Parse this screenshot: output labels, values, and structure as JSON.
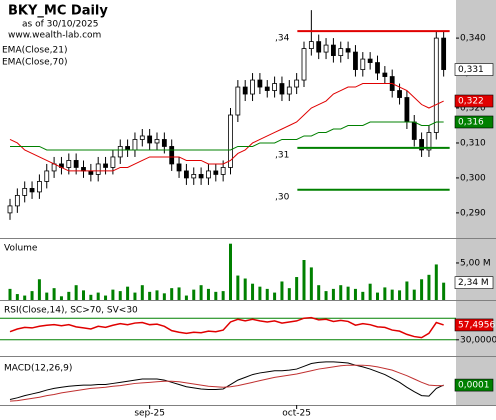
{
  "chart_data": [
    {
      "type": "candlestick",
      "title": "BKY_MC Daily",
      "subtitle": "as of 30/10/2025",
      "source": "www.wealth-lab.com",
      "open": [
        0.29,
        0.292,
        0.295,
        0.297,
        0.296,
        0.299,
        0.302,
        0.304,
        0.303,
        0.305,
        0.303,
        0.302,
        0.301,
        0.304,
        0.303,
        0.306,
        0.309,
        0.308,
        0.311,
        0.312,
        0.31,
        0.311,
        0.309,
        0.304,
        0.302,
        0.3,
        0.301,
        0.3,
        0.302,
        0.301,
        0.303,
        0.318,
        0.326,
        0.324,
        0.328,
        0.326,
        0.325,
        0.327,
        0.324,
        0.326,
        0.328,
        0.337,
        0.339,
        0.336,
        0.338,
        0.335,
        0.337,
        0.336,
        0.331,
        0.334,
        0.333,
        0.33,
        0.329,
        0.325,
        0.323,
        0.316,
        0.311,
        0.308,
        0.313,
        0.34
      ],
      "high": [
        0.294,
        0.297,
        0.299,
        0.299,
        0.301,
        0.304,
        0.306,
        0.306,
        0.307,
        0.307,
        0.305,
        0.304,
        0.306,
        0.306,
        0.308,
        0.311,
        0.311,
        0.313,
        0.314,
        0.314,
        0.313,
        0.313,
        0.311,
        0.306,
        0.304,
        0.303,
        0.303,
        0.304,
        0.304,
        0.305,
        0.32,
        0.328,
        0.328,
        0.33,
        0.33,
        0.328,
        0.329,
        0.329,
        0.328,
        0.33,
        0.339,
        0.348,
        0.341,
        0.34,
        0.34,
        0.339,
        0.339,
        0.338,
        0.336,
        0.336,
        0.335,
        0.332,
        0.331,
        0.327,
        0.325,
        0.318,
        0.313,
        0.315,
        0.342,
        0.342
      ],
      "low": [
        0.288,
        0.29,
        0.293,
        0.294,
        0.294,
        0.297,
        0.3,
        0.301,
        0.301,
        0.301,
        0.3,
        0.299,
        0.299,
        0.301,
        0.301,
        0.304,
        0.306,
        0.306,
        0.309,
        0.308,
        0.308,
        0.307,
        0.302,
        0.3,
        0.298,
        0.298,
        0.298,
        0.298,
        0.299,
        0.299,
        0.301,
        0.316,
        0.322,
        0.322,
        0.324,
        0.323,
        0.323,
        0.322,
        0.322,
        0.324,
        0.326,
        0.335,
        0.334,
        0.334,
        0.333,
        0.333,
        0.334,
        0.329,
        0.329,
        0.331,
        0.328,
        0.327,
        0.323,
        0.321,
        0.314,
        0.309,
        0.306,
        0.306,
        0.311,
        0.329
      ],
      "close": [
        0.292,
        0.295,
        0.297,
        0.296,
        0.299,
        0.302,
        0.304,
        0.303,
        0.305,
        0.303,
        0.302,
        0.301,
        0.304,
        0.303,
        0.306,
        0.309,
        0.308,
        0.311,
        0.312,
        0.31,
        0.311,
        0.309,
        0.304,
        0.302,
        0.3,
        0.301,
        0.3,
        0.302,
        0.301,
        0.303,
        0.318,
        0.326,
        0.324,
        0.328,
        0.326,
        0.325,
        0.327,
        0.324,
        0.326,
        0.328,
        0.337,
        0.339,
        0.336,
        0.338,
        0.335,
        0.337,
        0.336,
        0.331,
        0.334,
        0.333,
        0.33,
        0.329,
        0.325,
        0.323,
        0.316,
        0.311,
        0.308,
        0.313,
        0.34,
        0.331
      ],
      "close_label": "0,331",
      "series": [
        {
          "name": "EMA(Close,21)",
          "color": "#e00000",
          "last_label": "0,322",
          "values": [
            0.311,
            0.31,
            0.308,
            0.307,
            0.306,
            0.305,
            0.304,
            0.303,
            0.302,
            0.302,
            0.302,
            0.302,
            0.302,
            0.302,
            0.302,
            0.303,
            0.303,
            0.304,
            0.305,
            0.306,
            0.306,
            0.306,
            0.306,
            0.306,
            0.305,
            0.305,
            0.305,
            0.304,
            0.304,
            0.304,
            0.305,
            0.307,
            0.308,
            0.31,
            0.311,
            0.312,
            0.313,
            0.314,
            0.315,
            0.316,
            0.318,
            0.32,
            0.321,
            0.322,
            0.324,
            0.325,
            0.326,
            0.326,
            0.327,
            0.327,
            0.327,
            0.327,
            0.327,
            0.326,
            0.325,
            0.323,
            0.321,
            0.32,
            0.321,
            0.322
          ]
        },
        {
          "name": "EMA(Close,70)",
          "color": "#008000",
          "last_label": "0,316",
          "values": [
            0.309,
            0.309,
            0.309,
            0.309,
            0.309,
            0.308,
            0.308,
            0.308,
            0.308,
            0.308,
            0.308,
            0.308,
            0.308,
            0.308,
            0.308,
            0.308,
            0.308,
            0.308,
            0.308,
            0.308,
            0.308,
            0.308,
            0.308,
            0.308,
            0.308,
            0.308,
            0.308,
            0.308,
            0.308,
            0.308,
            0.308,
            0.309,
            0.309,
            0.309,
            0.31,
            0.31,
            0.31,
            0.311,
            0.311,
            0.311,
            0.312,
            0.312,
            0.313,
            0.313,
            0.314,
            0.314,
            0.315,
            0.315,
            0.315,
            0.316,
            0.316,
            0.316,
            0.316,
            0.316,
            0.316,
            0.316,
            0.315,
            0.315,
            0.316,
            0.316
          ]
        }
      ],
      "levels": [
        {
          "value": 0.342,
          "label": ",34",
          "color": "#e00000",
          "start": 41
        },
        {
          "value": 0.3086,
          "label": ",31",
          "color": "#008000",
          "start": 41
        },
        {
          "value": 0.2966,
          "label": ",30",
          "color": "#008000",
          "start": 41
        }
      ],
      "ylim": [
        0.2831,
        0.3509
      ],
      "yticks": [
        {
          "value": 0.29,
          "label": "0,290"
        },
        {
          "value": 0.3,
          "label": "0,300"
        },
        {
          "value": 0.31,
          "label": "0,310"
        },
        {
          "value": 0.32,
          "label": "0,320"
        },
        {
          "value": 0.33,
          "label": "0,330"
        },
        {
          "value": 0.34,
          "label": "0,340"
        }
      ],
      "xticks": [
        {
          "value": 19,
          "label": "sep-25"
        },
        {
          "value": 39,
          "label": "oct-25"
        }
      ]
    },
    {
      "type": "bar",
      "title": "Volume",
      "color": "#008000",
      "values": [
        1.5,
        0.8,
        0.6,
        1.2,
        2.8,
        1.0,
        1.6,
        0.5,
        1.1,
        2.0,
        1.3,
        0.7,
        1.0,
        0.6,
        1.4,
        1.2,
        1.8,
        1.0,
        2.0,
        1.1,
        1.3,
        0.9,
        1.6,
        1.7,
        0.6,
        1.4,
        2.0,
        1.5,
        1.1,
        1.2,
        7.6,
        3.3,
        2.9,
        2.2,
        1.8,
        1.5,
        1.0,
        2.5,
        1.6,
        3.1,
        5.4,
        4.4,
        2.0,
        1.2,
        1.5,
        2.0,
        1.8,
        1.5,
        1.1,
        2.2,
        1.0,
        1.7,
        1.4,
        1.3,
        2.5,
        1.4,
        2.8,
        3.4,
        4.8,
        2.34
      ],
      "last_label": "2,34 M",
      "ylim": [
        0,
        8.1
      ],
      "yticks": [
        {
          "value": 5,
          "label": "5,00 M"
        }
      ]
    },
    {
      "type": "line",
      "title": "RSI(Close,14), SC>70, SV<30",
      "series": [
        {
          "color": "#e00000",
          "last_label": "57,4956",
          "values": [
            45,
            50,
            53,
            52,
            55,
            57,
            58,
            56,
            58,
            54,
            52,
            50,
            55,
            53,
            57,
            60,
            58,
            61,
            62,
            58,
            59,
            55,
            47,
            44,
            42,
            44,
            43,
            46,
            45,
            48,
            63,
            68,
            65,
            68,
            65,
            63,
            65,
            61,
            63,
            65,
            70,
            71,
            67,
            68,
            64,
            66,
            64,
            57,
            60,
            58,
            54,
            53,
            48,
            46,
            40,
            36,
            34,
            42,
            62,
            57.4956
          ]
        }
      ],
      "levels": [
        {
          "value": 70,
          "color": "#008000"
        },
        {
          "value": 30,
          "color": "#008000"
        }
      ],
      "ylim": [
        0,
        100
      ],
      "yticks": [
        {
          "value": 30,
          "label": "30,0000"
        }
      ]
    },
    {
      "type": "line",
      "title": "MACD(12,26,9)",
      "series": [
        {
          "color": "#000000",
          "last_label": "0,0001",
          "values": [
            -0.0025,
            -0.0022,
            -0.0018,
            -0.0015,
            -0.0012,
            -0.0008,
            -0.0005,
            -0.0003,
            -0.0001,
            0,
            0.0001,
            0.0001,
            0.0002,
            0.0002,
            0.0004,
            0.0006,
            0.0008,
            0.001,
            0.0012,
            0.0012,
            0.0012,
            0.001,
            0.0006,
            0.0002,
            -0.0002,
            -0.0004,
            -0.0006,
            -0.0007,
            -0.0007,
            -0.0006,
            0.0002,
            0.001,
            0.0015,
            0.002,
            0.0023,
            0.0025,
            0.0027,
            0.0027,
            0.0028,
            0.003,
            0.0035,
            0.004,
            0.0042,
            0.0043,
            0.0043,
            0.0042,
            0.0041,
            0.0037,
            0.0034,
            0.003,
            0.0025,
            0.002,
            0.0013,
            0.0006,
            -0.0003,
            -0.0011,
            -0.0018,
            -0.0019,
            -0.0005,
            0.0001
          ]
        },
        {
          "color": "#c03030",
          "values": [
            -0.0028,
            -0.0027,
            -0.0025,
            -0.0023,
            -0.0021,
            -0.0018,
            -0.0016,
            -0.0013,
            -0.0011,
            -0.0009,
            -0.0007,
            -0.0005,
            -0.0004,
            -0.0003,
            -0.0001,
            0,
            0.0002,
            0.0004,
            0.0005,
            0.0006,
            0.0007,
            0.0008,
            0.0008,
            0.0007,
            0.0005,
            0.0003,
            0.0001,
            -0.0001,
            -0.0002,
            -0.0003,
            -0.0002,
            0,
            0.0003,
            0.0006,
            0.0009,
            0.0012,
            0.0015,
            0.0017,
            0.0019,
            0.0021,
            0.0024,
            0.0027,
            0.003,
            0.0032,
            0.0034,
            0.0036,
            0.0037,
            0.0037,
            0.0037,
            0.0036,
            0.0034,
            0.0031,
            0.0028,
            0.0023,
            0.0018,
            0.0012,
            0.0006,
            0.0001,
            0,
            0
          ]
        }
      ],
      "ylim": [
        -0.0035,
        0.005
      ]
    }
  ]
}
